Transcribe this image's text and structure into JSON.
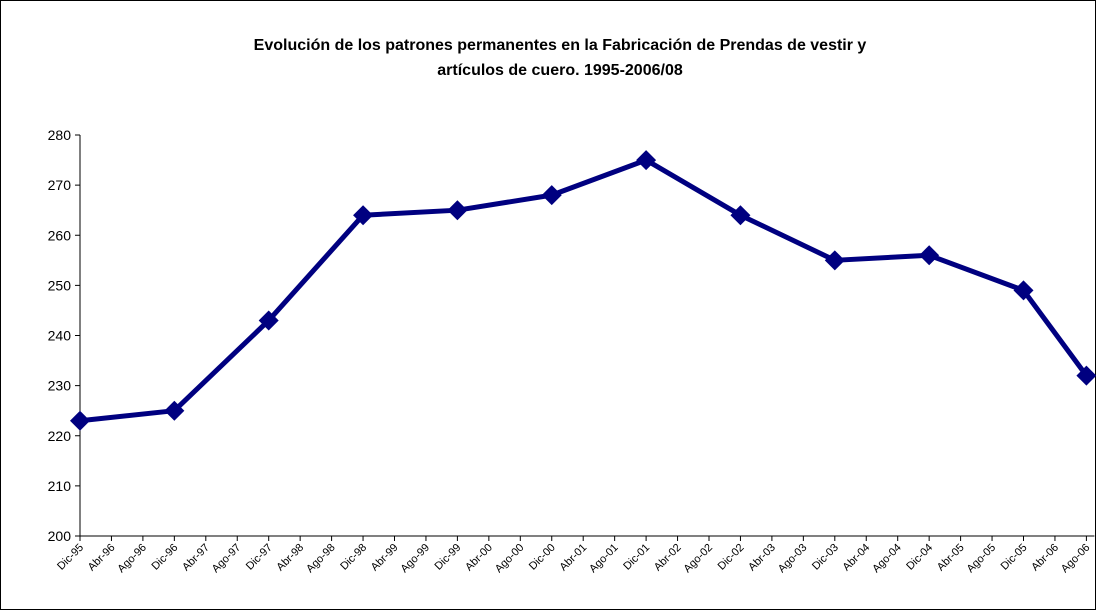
{
  "chart_data": {
    "type": "line",
    "title": [
      "Evolución de los patrones permanentes en la Fabricación de Prendas de vestir y",
      "artículos de cuero.  1995-2006/08"
    ],
    "categories": [
      "Dic-95",
      "Abr-96",
      "Ago-96",
      "Dic-96",
      "Abr-97",
      "Ago-97",
      "Dic-97",
      "Abr-98",
      "Ago-98",
      "Dic-98",
      "Abr-99",
      "Ago-99",
      "Dic-99",
      "Abr-00",
      "Ago-00",
      "Dic-00",
      "Abr-01",
      "Ago-01",
      "Dic-01",
      "Abr-02",
      "Ago-02",
      "Dic-02",
      "Abr-03",
      "Ago-03",
      "Dic-03",
      "Abr-04",
      "Ago-04",
      "Dic-04",
      "Abr-05",
      "Ago-05",
      "Dic-05",
      "Abr-06",
      "Ago-06"
    ],
    "x": [
      "Dic-95",
      "Dic-96",
      "Dic-97",
      "Dic-98",
      "Dic-99",
      "Dic-00",
      "Dic-01",
      "Dic-02",
      "Dic-03",
      "Dic-04",
      "Dic-05",
      "Ago-06"
    ],
    "values": [
      223,
      225,
      243,
      264,
      265,
      268,
      275,
      264,
      255,
      256,
      249,
      232
    ],
    "color": "#000080",
    "ylim": [
      200,
      280
    ],
    "yticks": [
      200,
      210,
      220,
      230,
      240,
      250,
      260,
      270,
      280
    ]
  }
}
